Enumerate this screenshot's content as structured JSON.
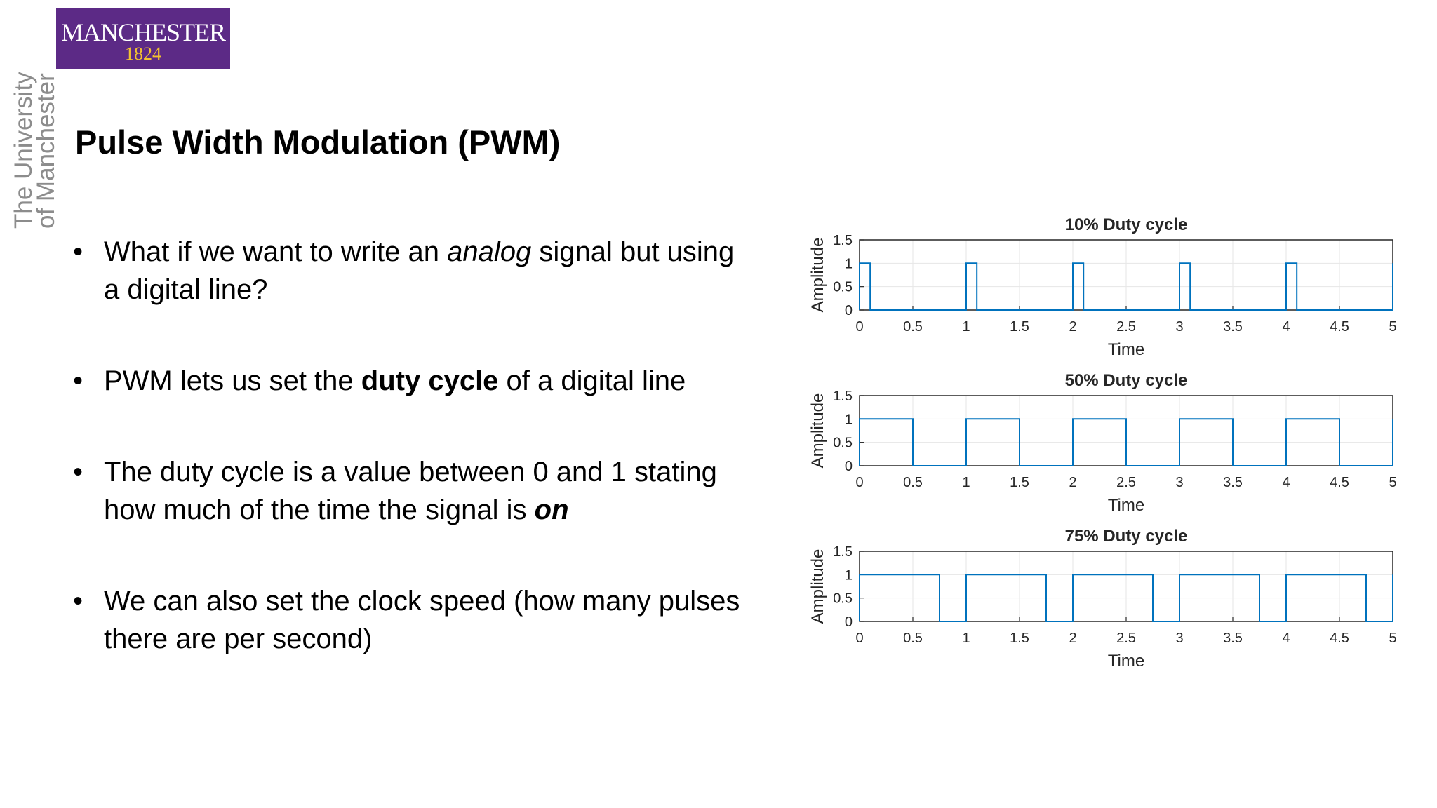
{
  "logo": {
    "name": "MANCHESTER",
    "year": "1824"
  },
  "side_text": {
    "line1": "The University",
    "line2": "of Manchester"
  },
  "title": "Pulse Width Modulation (PWM)",
  "bullets": [
    {
      "parts": [
        {
          "text": "What if we want to write an "
        },
        {
          "text": "analog",
          "style": "italic"
        },
        {
          "text": " signal but using a digital line?"
        }
      ]
    },
    {
      "parts": [
        {
          "text": "PWM lets us set the "
        },
        {
          "text": "duty cycle",
          "style": "bold"
        },
        {
          "text": " of a digital line"
        }
      ]
    },
    {
      "parts": [
        {
          "text": "The duty cycle is a value between 0 and 1 stating how much of the time the signal is "
        },
        {
          "text": "on",
          "style": "bold-italic"
        }
      ]
    },
    {
      "parts": [
        {
          "text": "We can also set the clock speed (how many pulses there are per second)"
        }
      ]
    }
  ],
  "colors": {
    "logo_bg": "#5c2a86",
    "logo_year": "#f2c230",
    "signal": "#0072bd",
    "grid": "#e6e6e6"
  },
  "chart_data": [
    {
      "type": "line",
      "title": "10% Duty cycle",
      "xlabel": "Time",
      "ylabel": "Amplitude",
      "period": 1,
      "duty": 0.1,
      "xlim": [
        0,
        5
      ],
      "ylim": [
        0,
        1.5
      ],
      "x_ticks": [
        "0",
        "0.5",
        "1",
        "1.5",
        "2",
        "2.5",
        "3",
        "3.5",
        "4",
        "4.5",
        "5"
      ],
      "y_ticks": [
        "0",
        "0.5",
        "1",
        "1.5"
      ],
      "grid": true
    },
    {
      "type": "line",
      "title": "50% Duty cycle",
      "xlabel": "Time",
      "ylabel": "Amplitude",
      "period": 1,
      "duty": 0.5,
      "xlim": [
        0,
        5
      ],
      "ylim": [
        0,
        1.5
      ],
      "x_ticks": [
        "0",
        "0.5",
        "1",
        "1.5",
        "2",
        "2.5",
        "3",
        "3.5",
        "4",
        "4.5",
        "5"
      ],
      "y_ticks": [
        "0",
        "0.5",
        "1",
        "1.5"
      ],
      "grid": true
    },
    {
      "type": "line",
      "title": "75% Duty cycle",
      "xlabel": "Time",
      "ylabel": "Amplitude",
      "period": 1,
      "duty": 0.75,
      "xlim": [
        0,
        5
      ],
      "ylim": [
        0,
        1.5
      ],
      "x_ticks": [
        "0",
        "0.5",
        "1",
        "1.5",
        "2",
        "2.5",
        "3",
        "3.5",
        "4",
        "4.5",
        "5"
      ],
      "y_ticks": [
        "0",
        "0.5",
        "1",
        "1.5"
      ],
      "grid": true
    }
  ]
}
